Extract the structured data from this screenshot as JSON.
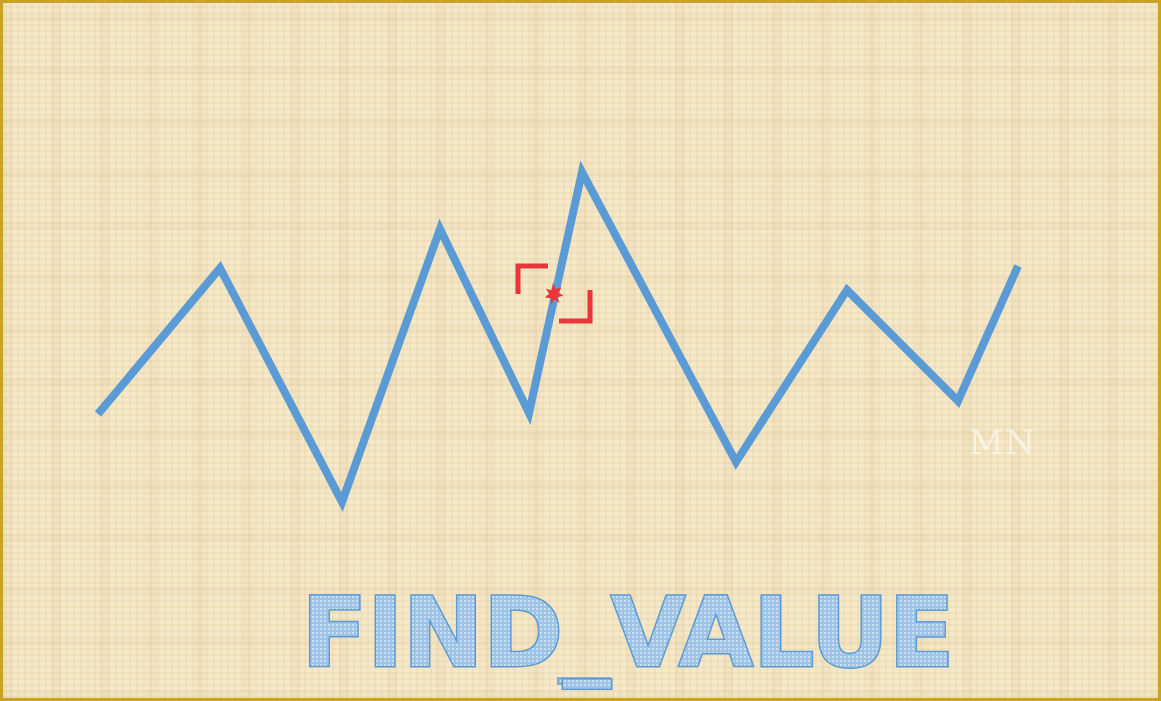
{
  "title": "FIND_VALUE",
  "watermark": "MN",
  "colors": {
    "line": "#5b9bd5",
    "title_fill": "#9dc3e6",
    "title_stroke": "#5b9bd5",
    "marker": "#e8363b",
    "border": "#c9a227",
    "background": "#f4e6c4"
  },
  "icons": {
    "target": "crosshair-icon",
    "burst": "burst-icon"
  }
}
